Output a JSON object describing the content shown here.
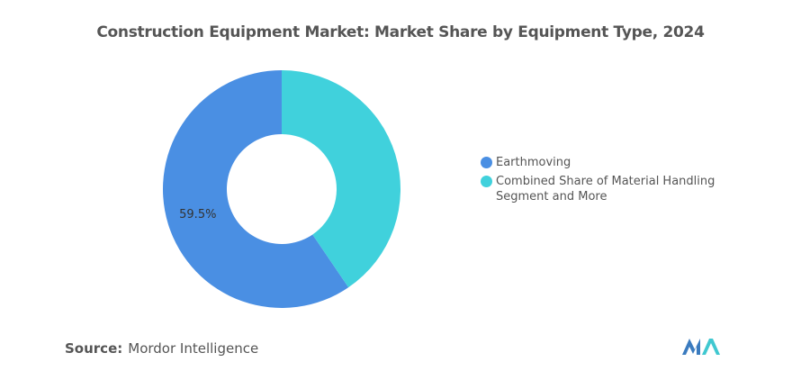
{
  "chart_data": {
    "type": "donut",
    "title": "Construction Equipment Market: Market Share by Equipment Type, 2024",
    "series": [
      {
        "name": "Earthmoving",
        "color": "#4a8fe3",
        "values": [
          59.5
        ],
        "value_labels": [
          "59.5%"
        ]
      },
      {
        "name": "Combined Share of Material Handling Segment and More",
        "color": "#40d1dc",
        "values": [
          40.5
        ]
      }
    ],
    "direction": "counterclockwise"
  },
  "footer": {
    "source_label": "Source:",
    "source": "Mordor Intelligence"
  }
}
